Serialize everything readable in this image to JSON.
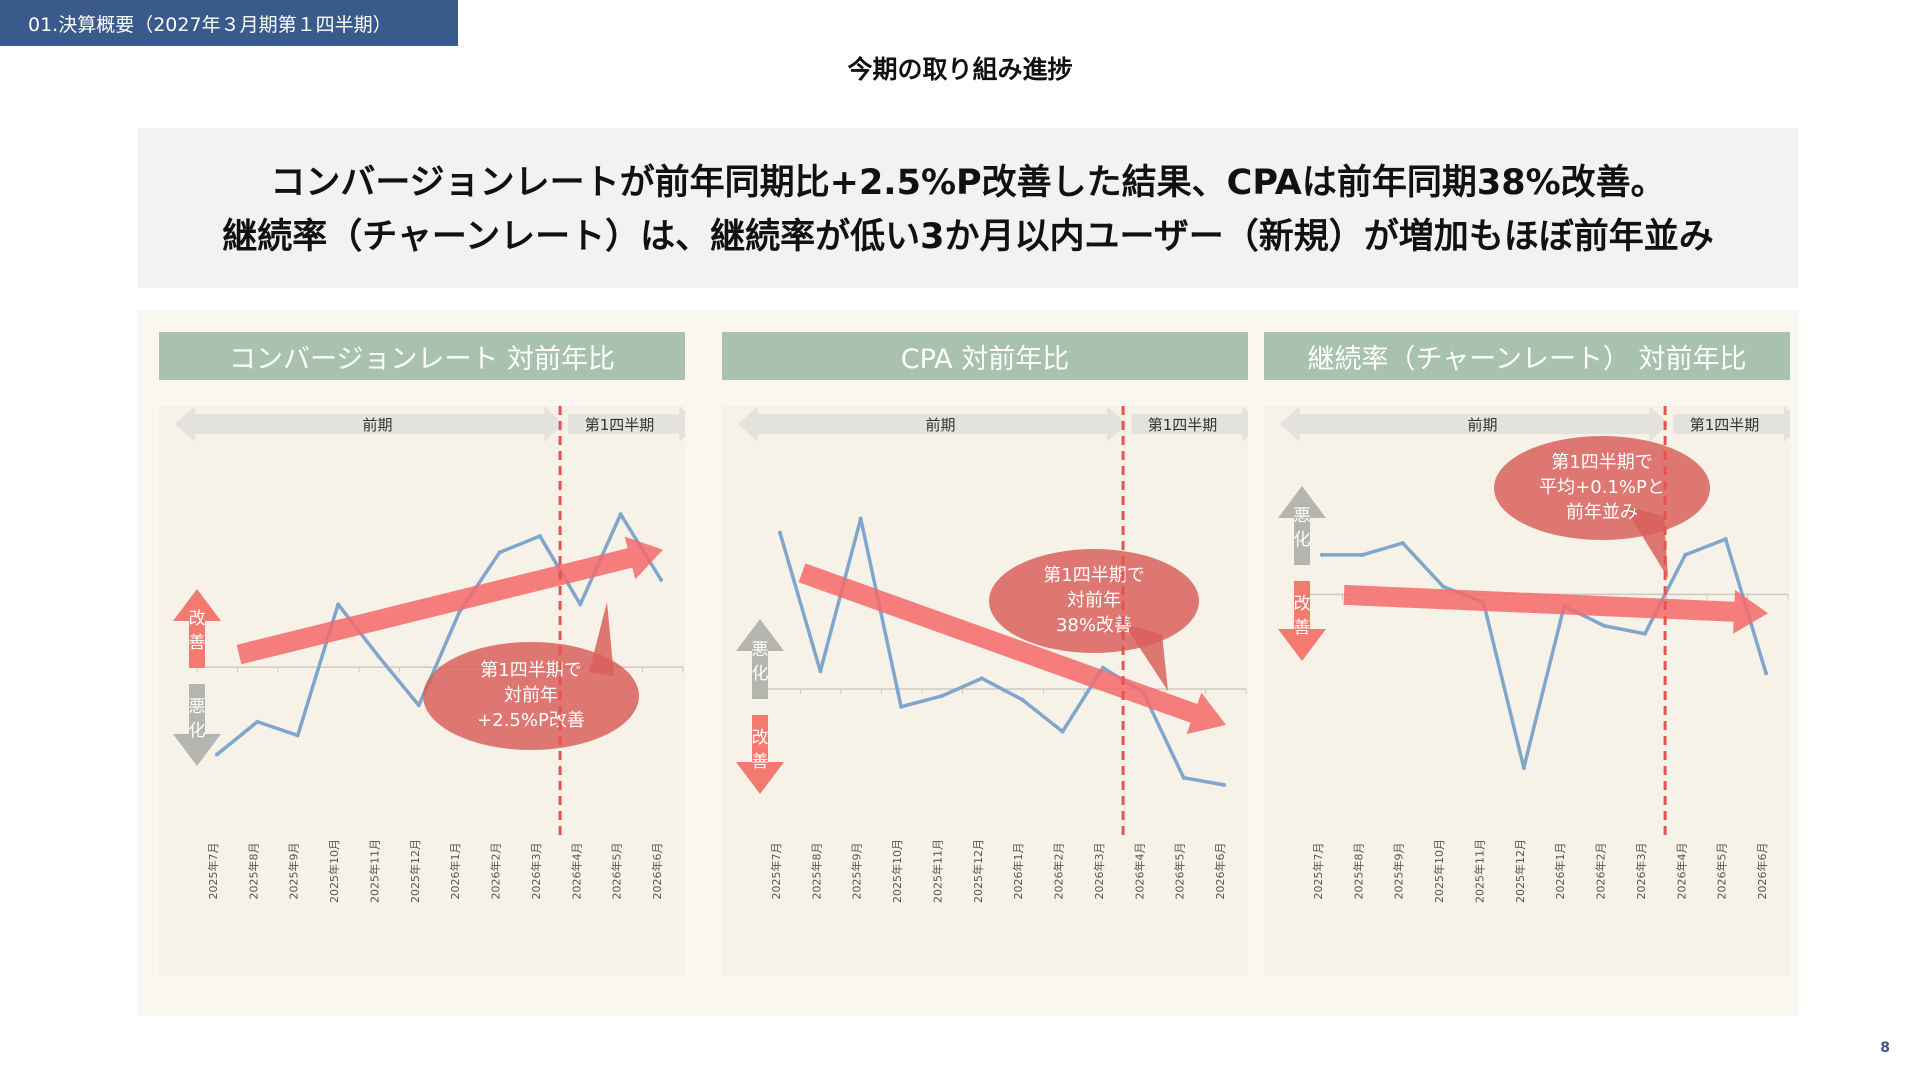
{
  "header": {
    "section_tag": "01.決算概要（2027年３月期第１四半期）",
    "title": "今期の取り組み進捗"
  },
  "summary": {
    "line1": "コンバージョンレートが前年同期比+2.5%P改善した結果、CPAは前年同期38%改善。",
    "line2": "継続率（チャーンレート）は、継続率が低い3か月以内ユーザー（新規）が増加もほぼ前年並み"
  },
  "page_number": "8",
  "colors": {
    "line": "#7fa6cc",
    "trend_arrow": "#f46a6a",
    "bubble": "#d9605c",
    "divider": "#e8534f",
    "improve": "#f47a70",
    "worsen": "#b5b5b0",
    "panel_header": "#a8c2ad"
  },
  "chart_data": [
    {
      "type": "line",
      "title": "コンバージョンレート 対前年比",
      "categories": [
        "2025年7月",
        "2025年8月",
        "2025年9月",
        "2025年10月",
        "2025年11月",
        "2025年12月",
        "2026年1月",
        "2026年2月",
        "2026年3月",
        "2026年4月",
        "2026年5月",
        "2026年6月"
      ],
      "values": [
        -16,
        -10,
        -12.5,
        11.5,
        2,
        -7,
        10,
        21,
        24,
        11.5,
        28,
        16
      ],
      "ylim": [
        -30,
        35
      ],
      "period_prev": "前期",
      "period_current": "第1四半期",
      "improve_label": "改善",
      "worsen_label": "悪化",
      "improve_direction": "up",
      "callout": [
        "第1四半期で",
        "対前年",
        "+2.5%P改善"
      ],
      "trend": "up"
    },
    {
      "type": "line",
      "title": "CPA 対前年比",
      "categories": [
        "2025年7月",
        "2025年8月",
        "2025年9月",
        "2025年10月",
        "2025年11月",
        "2025年12月",
        "2026年1月",
        "2026年2月",
        "2026年3月",
        "2026年4月",
        "2026年5月",
        "2026年6月"
      ],
      "values": [
        22,
        2.5,
        24,
        -2.5,
        -1,
        1.5,
        -1.5,
        -6,
        3,
        -0.5,
        -12.5,
        -13.5
      ],
      "ylim": [
        -20,
        30
      ],
      "period_prev": "前期",
      "period_current": "第1四半期",
      "improve_label": "改善",
      "worsen_label": "悪化",
      "improve_direction": "down",
      "callout": [
        "第1四半期で",
        "対前年",
        "38%改善"
      ],
      "trend": "down"
    },
    {
      "type": "line",
      "title": "継続率（チャーンレート） 対前年比",
      "categories": [
        "2025年7月",
        "2025年8月",
        "2025年9月",
        "2025年10月",
        "2025年11月",
        "2025年12月",
        "2026年1月",
        "2026年2月",
        "2026年3月",
        "2026年4月",
        "2026年5月",
        "2026年6月"
      ],
      "values": [
        5,
        5,
        6.5,
        1,
        -1,
        -22,
        -1.5,
        -4,
        -5,
        5,
        7,
        -10
      ],
      "ylim": [
        -30,
        15
      ],
      "period_prev": "前期",
      "period_current": "第1四半期",
      "improve_label": "改善",
      "worsen_label": "悪化",
      "improve_direction": "down",
      "callout": [
        "第1四半期で",
        "平均+0.1%Pと",
        "前年並み"
      ],
      "trend": "down"
    }
  ]
}
